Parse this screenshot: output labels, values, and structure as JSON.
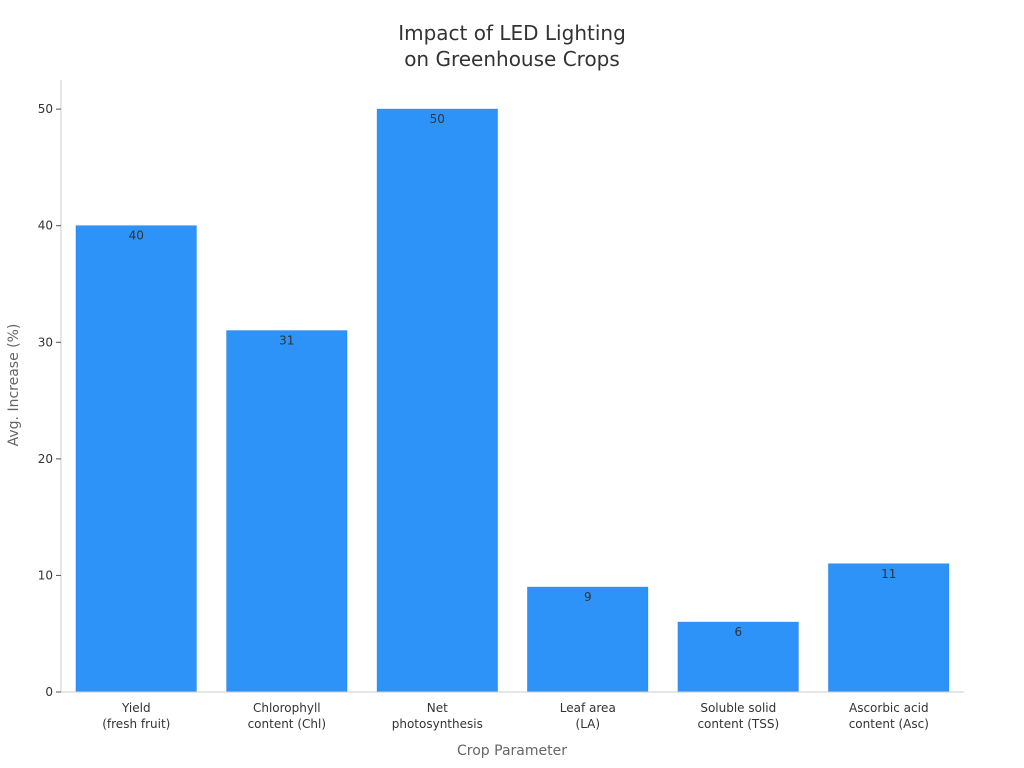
{
  "chart_data": {
    "type": "bar",
    "title": [
      "Impact of LED Lighting",
      "on Greenhouse Crops"
    ],
    "xlabel": "Crop Parameter",
    "ylabel": "Avg. Increase (%)",
    "categories": [
      [
        "Yield",
        "(fresh fruit)"
      ],
      [
        "Chlorophyll",
        "content (Chl)"
      ],
      [
        "Net",
        "photosynthesis"
      ],
      [
        "Leaf area",
        "(LA)"
      ],
      [
        "Soluble solid",
        "content (TSS)"
      ],
      [
        "Ascorbic acid",
        "content (Asc)"
      ]
    ],
    "values": [
      40,
      31,
      50,
      9,
      6,
      11
    ],
    "ylim": [
      0,
      52.5
    ],
    "yticks": [
      0,
      10,
      20,
      30,
      40,
      50
    ],
    "grid": false,
    "bar_color": "#2e93f9"
  }
}
